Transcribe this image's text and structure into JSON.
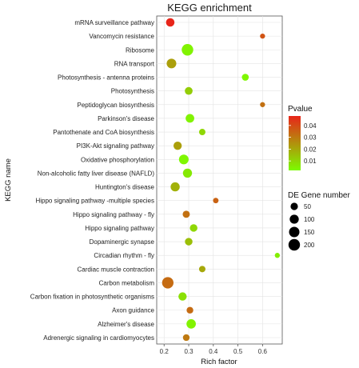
{
  "chart_data": {
    "type": "scatter",
    "title": "KEGG enrichment",
    "xlabel": "Rich factor",
    "ylabel": "KEGG name",
    "xlim": [
      0.17,
      0.68
    ],
    "xticks": [
      "0.2",
      "0.3",
      "0.4",
      "0.5",
      "0.6"
    ],
    "categories": [
      "mRNA surveillance pathway",
      "Vancomycin resistance",
      "Ribosome",
      "RNA transport",
      "Photosynthesis - antenna proteins",
      "Photosynthesis",
      "Peptidoglycan biosynthesis",
      "Parkinson's disease",
      "Pantothenate and CoA biosynthesis",
      "PI3K-Akt signaling pathway",
      "Oxidative phosphorylation",
      "Non-alcoholic fatty liver disease (NAFLD)",
      "Huntington's disease",
      "Hippo signaling pathway -multiple species",
      "Hippo signaling pathway - fly",
      "Hippo signaling pathway",
      "Dopaminergic synapse",
      "Circadian rhythm - fly",
      "Cardiac muscle contraction",
      "Carbon metabolism",
      "Carbon fixation in photosynthetic organisms",
      "Axon guidance",
      "Alzheimer's disease",
      "Adrenergic signaling in cardiomyocytes"
    ],
    "points": [
      {
        "y": "mRNA surveillance pathway",
        "x": 0.225,
        "pvalue": 0.048,
        "genes": 80
      },
      {
        "y": "Vancomycin resistance",
        "x": 0.6,
        "pvalue": 0.038,
        "genes": 10
      },
      {
        "y": "Ribosome",
        "x": 0.295,
        "pvalue": 0.004,
        "genes": 200
      },
      {
        "y": "RNA transport",
        "x": 0.23,
        "pvalue": 0.022,
        "genes": 120
      },
      {
        "y": "Photosynthesis - antenna proteins",
        "x": 0.53,
        "pvalue": 0.003,
        "genes": 40
      },
      {
        "y": "Photosynthesis",
        "x": 0.3,
        "pvalue": 0.012,
        "genes": 60
      },
      {
        "y": "Peptidoglycan biosynthesis",
        "x": 0.6,
        "pvalue": 0.032,
        "genes": 10
      },
      {
        "y": "Parkinson's disease",
        "x": 0.305,
        "pvalue": 0.004,
        "genes": 85
      },
      {
        "y": "Pantothenate and CoA biosynthesis",
        "x": 0.355,
        "pvalue": 0.01,
        "genes": 30
      },
      {
        "y": "PI3K-Akt signaling pathway",
        "x": 0.255,
        "pvalue": 0.022,
        "genes": 75
      },
      {
        "y": "Oxidative phosphorylation",
        "x": 0.28,
        "pvalue": 0.003,
        "genes": 120
      },
      {
        "y": "Non-alcoholic fatty liver disease (NAFLD)",
        "x": 0.295,
        "pvalue": 0.006,
        "genes": 100
      },
      {
        "y": "Huntington's disease",
        "x": 0.245,
        "pvalue": 0.018,
        "genes": 100
      },
      {
        "y": "Hippo signaling pathway -multiple species",
        "x": 0.41,
        "pvalue": 0.035,
        "genes": 15
      },
      {
        "y": "Hippo signaling pathway - fly",
        "x": 0.29,
        "pvalue": 0.032,
        "genes": 45
      },
      {
        "y": "Hippo signaling pathway",
        "x": 0.32,
        "pvalue": 0.01,
        "genes": 55
      },
      {
        "y": "Dopaminergic synapse",
        "x": 0.3,
        "pvalue": 0.015,
        "genes": 55
      },
      {
        "y": "Circadian rhythm - fly",
        "x": 0.66,
        "pvalue": 0.005,
        "genes": 10
      },
      {
        "y": "Cardiac muscle contraction",
        "x": 0.355,
        "pvalue": 0.02,
        "genes": 30
      },
      {
        "y": "Carbon metabolism",
        "x": 0.215,
        "pvalue": 0.033,
        "genes": 195
      },
      {
        "y": "Carbon fixation in photosynthetic organisms",
        "x": 0.275,
        "pvalue": 0.008,
        "genes": 75
      },
      {
        "y": "Axon guidance",
        "x": 0.305,
        "pvalue": 0.033,
        "genes": 35
      },
      {
        "y": "Alzheimer's disease",
        "x": 0.31,
        "pvalue": 0.004,
        "genes": 110
      },
      {
        "y": "Adrenergic signaling in cardiomyocytes",
        "x": 0.29,
        "pvalue": 0.03,
        "genes": 35
      }
    ],
    "color_legend": {
      "title": "Pvalue",
      "ticks": [
        "0.04",
        "0.03",
        "0.02",
        "0.01"
      ],
      "range": [
        0.002,
        0.048
      ],
      "low_color": "#7CFC00",
      "high_color": "#E8251A"
    },
    "size_legend": {
      "title": "DE Gene number",
      "entries": [
        "50",
        "100",
        "150",
        "200"
      ]
    },
    "legend_position": "right",
    "grid": true,
    "panel_background": "#ffffff"
  }
}
